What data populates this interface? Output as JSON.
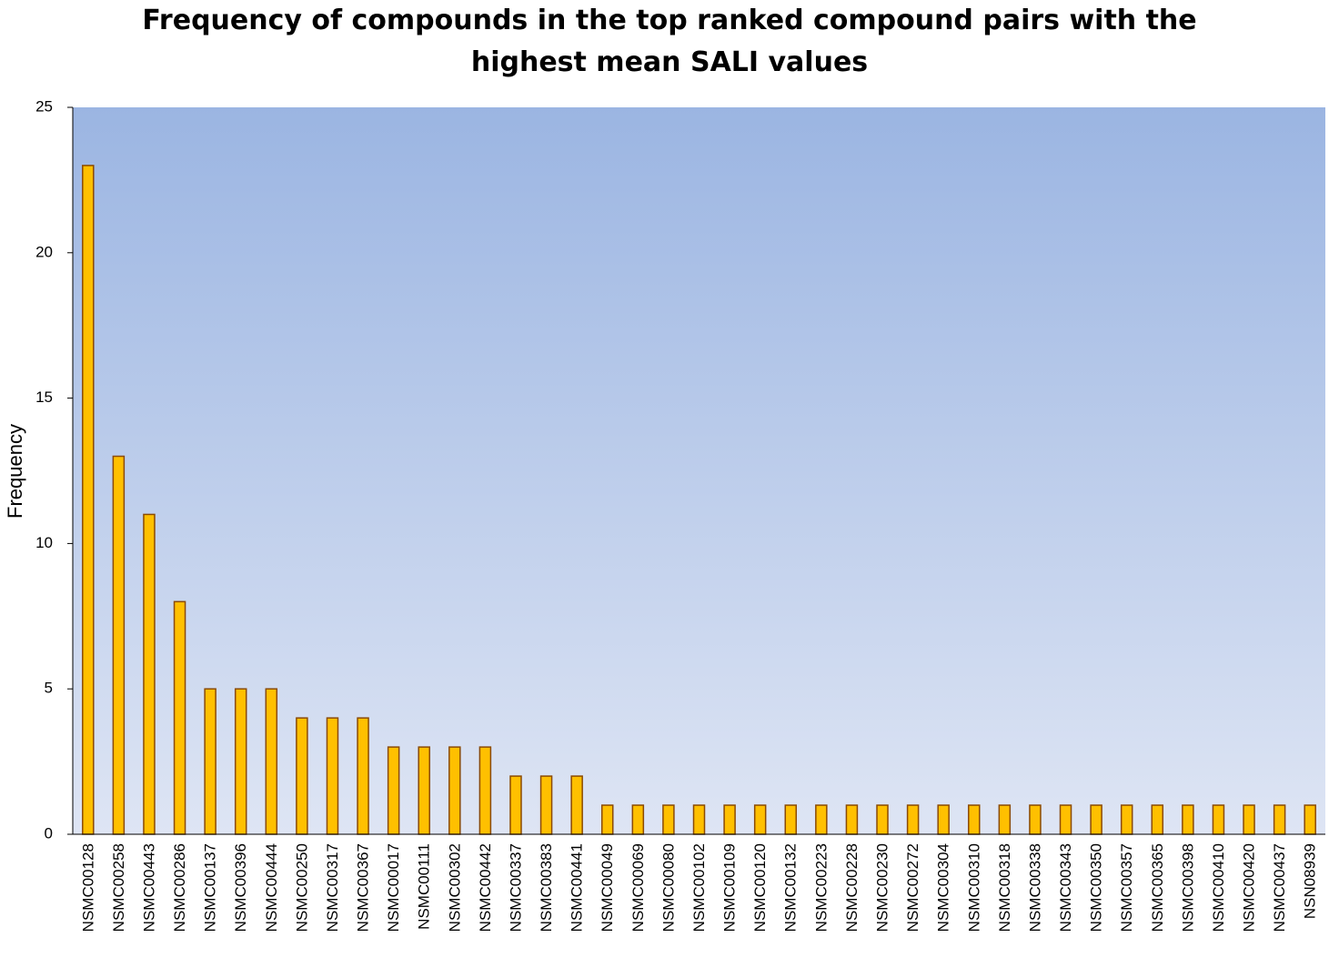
{
  "chart_data": {
    "type": "bar",
    "title_lines": [
      "Frequency of compounds in the top ranked compound pairs with the",
      "highest mean SALI values"
    ],
    "ylabel": "Frequency",
    "xlabel": "",
    "ylim": [
      0,
      25
    ],
    "yticks": [
      "0",
      "5",
      "10",
      "15",
      "20",
      "25"
    ],
    "grid": false,
    "categories": [
      "NSMC00128",
      "NSMC00258",
      "NSMC00443",
      "NSMC00286",
      "NSMC00137",
      "NSMC00396",
      "NSMC00444",
      "NSMC00250",
      "NSMC00317",
      "NSMC00367",
      "NSMC00017",
      "NSMC00111",
      "NSMC00302",
      "NSMC00442",
      "NSMC00337",
      "NSMC00383",
      "NSMC00441",
      "NSMC00049",
      "NSMC00069",
      "NSMC00080",
      "NSMC00102",
      "NSMC00109",
      "NSMC00120",
      "NSMC00132",
      "NSMC00223",
      "NSMC00228",
      "NSMC00230",
      "NSMC00272",
      "NSMC00304",
      "NSMC00310",
      "NSMC00318",
      "NSMC00338",
      "NSMC00343",
      "NSMC00350",
      "NSMC00357",
      "NSMC00365",
      "NSMC00398",
      "NSMC00410",
      "NSMC00420",
      "NSMC00437",
      "NSN08939"
    ],
    "values": [
      23,
      13,
      11,
      8,
      5,
      5,
      5,
      4,
      4,
      4,
      3,
      3,
      3,
      3,
      2,
      2,
      2,
      1,
      1,
      1,
      1,
      1,
      1,
      1,
      1,
      1,
      1,
      1,
      1,
      1,
      1,
      1,
      1,
      1,
      1,
      1,
      1,
      1,
      1,
      1,
      1
    ],
    "colors": {
      "bar_fill": "#FFC000",
      "bar_stroke": "#8B4A00",
      "plot_bg_top": "#9BB5E2",
      "plot_bg_bottom": "#DEE5F4"
    }
  }
}
